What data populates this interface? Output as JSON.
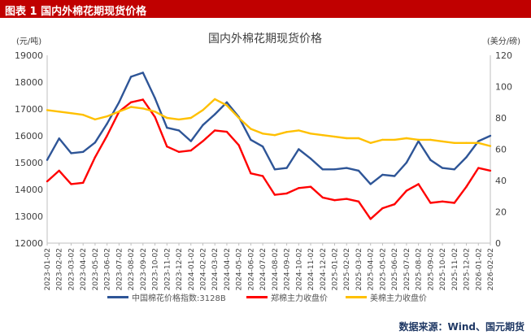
{
  "header": {
    "figure_label": "图表 1  国内外棉花期现货价格"
  },
  "source": "数据来源：Wind、国元期货",
  "chart_data": {
    "type": "line",
    "title": "国内外棉花期现货价格",
    "ylabel_left": "(元/吨)",
    "ylabel_right": "(美分/磅)",
    "ylim_left": [
      12000,
      19000
    ],
    "yticks_left": [
      12000,
      13000,
      14000,
      15000,
      16000,
      17000,
      18000,
      19000
    ],
    "ylim_right": [
      0,
      120
    ],
    "yticks_right": [
      0,
      20,
      40,
      60,
      80,
      100,
      120
    ],
    "x": [
      "2023-01-02",
      "2023-02-02",
      "2023-03-02",
      "2023-04-02",
      "2023-05-02",
      "2023-06-02",
      "2023-07-02",
      "2023-08-02",
      "2023-09-02",
      "2023-10-02",
      "2023-11-02",
      "2023-12-02",
      "2024-01-02",
      "2024-02-02",
      "2024-03-02",
      "2024-04-02",
      "2024-05-02",
      "2024-06-02",
      "2024-07-02",
      "2024-08-02",
      "2024-09-02",
      "2024-10-02",
      "2024-11-02",
      "2024-12-02",
      "2025-01-02",
      "2025-02-02",
      "2025-03-02",
      "2025-04-02",
      "2025-05-02",
      "2025-06-02",
      "2025-07-02",
      "2025-08-02",
      "2025-09-02",
      "2025-10-02",
      "2025-11-02",
      "2025-12-02",
      "2026-01-02",
      "2026-02-02"
    ],
    "grid": false,
    "legend_position": "bottom",
    "series": [
      {
        "name": "中国棉花价格指数:3128B",
        "axis": "left",
        "color": "#2e5597",
        "values": [
          15100,
          15900,
          15350,
          15400,
          15750,
          16450,
          17250,
          18200,
          18350,
          17400,
          16300,
          16200,
          15800,
          16400,
          16800,
          17250,
          16700,
          15850,
          15600,
          14750,
          14800,
          15500,
          15150,
          14750,
          14750,
          14800,
          14700,
          14200,
          14550,
          14500,
          15000,
          15800,
          15100,
          14800,
          14750,
          15200,
          15800,
          16000
        ]
      },
      {
        "name": "郑棉主力收盘价",
        "axis": "left",
        "color": "#ff0000",
        "values": [
          14300,
          14700,
          14200,
          14250,
          15200,
          16000,
          16900,
          17250,
          17350,
          16700,
          15600,
          15400,
          15450,
          15800,
          16200,
          16150,
          15650,
          14600,
          14500,
          13800,
          13850,
          14050,
          14100,
          13700,
          13600,
          13650,
          13550,
          12900,
          13300,
          13450,
          13950,
          14200,
          13500,
          13550,
          13500,
          14100,
          14800,
          14700
        ]
      },
      {
        "name": "美棉主力收盘价",
        "axis": "right",
        "color": "#ffc000",
        "values": [
          85,
          84,
          83,
          82,
          79,
          81,
          84,
          87,
          86,
          84,
          80,
          79,
          80,
          85,
          92,
          88,
          80,
          73,
          70,
          69,
          71,
          72,
          70,
          69,
          68,
          67,
          67,
          64,
          66,
          66,
          67,
          66,
          66,
          65,
          64,
          64,
          64,
          62
        ]
      }
    ]
  }
}
